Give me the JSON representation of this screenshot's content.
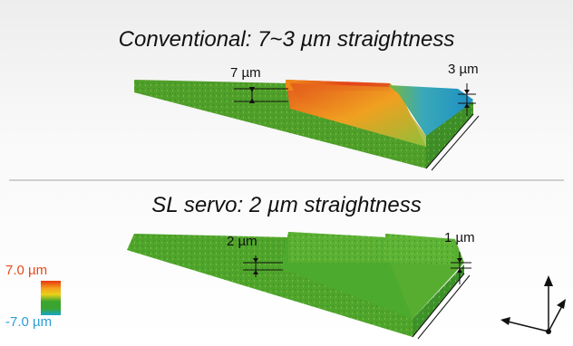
{
  "top_panel": {
    "title": "Conventional: 7~3 µm straightness",
    "left_step_label": "7 µm",
    "right_step_label": "3 µm"
  },
  "bottom_panel": {
    "title": "SL servo: 2 µm straightness",
    "left_step_label": "2 µm",
    "right_step_label": "1 µm"
  },
  "color_scale": {
    "max_label": "7.0 µm",
    "min_label": "-7.0 µm",
    "colors": [
      "#e8360e",
      "#f5a11c",
      "#e9d21a",
      "#3aa52e",
      "#17a6c9"
    ]
  },
  "colors": {
    "surface_green": "#4fa52b",
    "surface_red": "#e0451a",
    "surface_cyan": "#3aa9b8"
  }
}
